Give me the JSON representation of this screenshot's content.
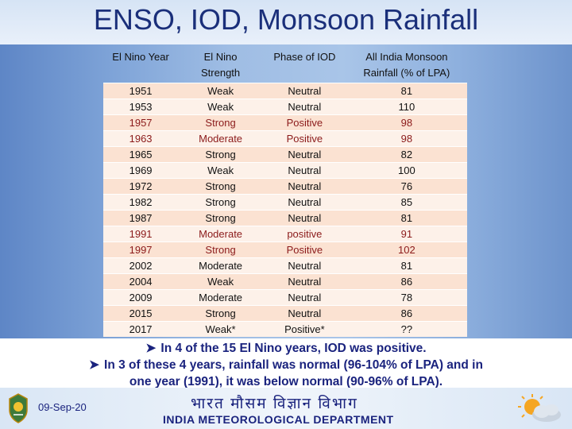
{
  "title": "ENSO, IOD, Monsoon Rainfall",
  "table": {
    "headers": {
      "year": "El Nino Year",
      "strength_line1": "El Nino",
      "strength_line2": "Strength",
      "phase": "Phase of IOD",
      "rain_line1": "All India Monsoon",
      "rain_line2": "Rainfall (% of LPA)"
    },
    "rows": [
      {
        "year": "1951",
        "strength": "Weak",
        "phase": "Neutral",
        "rainfall": "81"
      },
      {
        "year": "1953",
        "strength": "Weak",
        "phase": "Neutral",
        "rainfall": "110"
      },
      {
        "year": "1957",
        "strength": "Strong",
        "phase": "Positive",
        "rainfall": "98"
      },
      {
        "year": "1963",
        "strength": "Moderate",
        "phase": "Positive",
        "rainfall": "98"
      },
      {
        "year": "1965",
        "strength": "Strong",
        "phase": "Neutral",
        "rainfall": "82"
      },
      {
        "year": "1969",
        "strength": "Weak",
        "phase": "Neutral",
        "rainfall": "100"
      },
      {
        "year": "1972",
        "strength": "Strong",
        "phase": "Neutral",
        "rainfall": "76"
      },
      {
        "year": "1982",
        "strength": "Strong",
        "phase": "Neutral",
        "rainfall": "85"
      },
      {
        "year": "1987",
        "strength": "Strong",
        "phase": "Neutral",
        "rainfall": "81"
      },
      {
        "year": "1991",
        "strength": "Moderate",
        "phase": "positive",
        "rainfall": "91"
      },
      {
        "year": "1997",
        "strength": "Strong",
        "phase": "Positive",
        "rainfall": "102"
      },
      {
        "year": "2002",
        "strength": "Moderate",
        "phase": "Neutral",
        "rainfall": "81"
      },
      {
        "year": "2004",
        "strength": "Weak",
        "phase": "Neutral",
        "rainfall": "86"
      },
      {
        "year": "2009",
        "strength": "Moderate",
        "phase": "Neutral",
        "rainfall": "78"
      },
      {
        "year": "2015",
        "strength": "Strong",
        "phase": "Neutral",
        "rainfall": "86"
      },
      {
        "year": "2017",
        "strength": "Weak*",
        "phase": "Positive*",
        "rainfall": "??"
      }
    ]
  },
  "bullets": {
    "line1": "In 4 of the 15 El Nino years, IOD was positive.",
    "line2": "In 3 of these 4 years, rainfall was normal (96-104% of LPA) and in",
    "line3": "one year (1991), it was below normal (90-96% of LPA)."
  },
  "footer": {
    "date": "09-Sep-20",
    "hindi": "भारत मौसम विज्ञान विभाग",
    "dept": "INDIA METEOROLOGICAL DEPARTMENT"
  },
  "icons": {
    "emblem": "imd-emblem-icon",
    "weather": "sun-cloud-icon",
    "bullet": "arrow-bullet-icon"
  },
  "colors": {
    "title": "#1a2f7a",
    "row_alt": "#fbe2d2",
    "row_base": "#fdf1e9",
    "bullet_text": "#1a237e"
  }
}
